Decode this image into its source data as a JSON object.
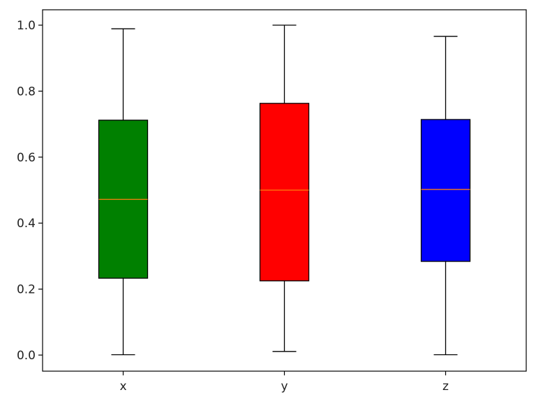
{
  "chart_data": {
    "type": "boxplot",
    "title": "",
    "xlabel": "",
    "ylabel": "",
    "categories": [
      "x",
      "y",
      "z"
    ],
    "ylim": [
      -0.05,
      1.05
    ],
    "yticks": [
      0.0,
      0.2,
      0.4,
      0.6,
      0.8,
      1.0
    ],
    "ytick_labels": [
      "0.0",
      "0.2",
      "0.4",
      "0.6",
      "0.8",
      "1.0"
    ],
    "grid": false,
    "median_color": "#ff7f0e",
    "boxes": [
      {
        "label": "x",
        "color": "#008000",
        "whisker_low": 0.001,
        "q1": 0.233,
        "median": 0.472,
        "q3": 0.712,
        "whisker_high": 0.989
      },
      {
        "label": "y",
        "color": "#ff0000",
        "whisker_low": 0.011,
        "q1": 0.225,
        "median": 0.5,
        "q3": 0.763,
        "whisker_high": 1.0
      },
      {
        "label": "z",
        "color": "#0000ff",
        "whisker_low": 0.001,
        "q1": 0.284,
        "median": 0.502,
        "q3": 0.714,
        "whisker_high": 0.966
      }
    ]
  }
}
